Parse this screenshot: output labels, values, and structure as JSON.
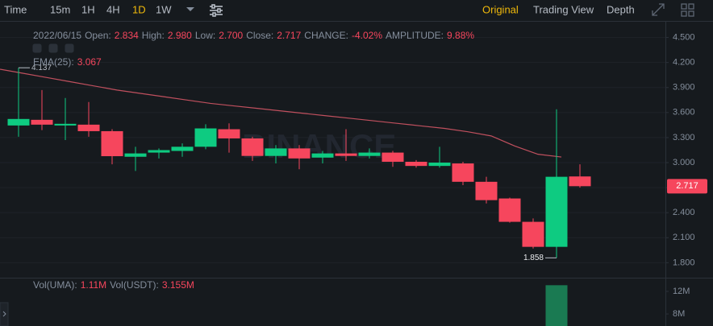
{
  "toolbar": {
    "intervals": [
      "Time",
      "15m",
      "1H",
      "4H",
      "1D",
      "1W"
    ],
    "active_interval": 4,
    "views": [
      "Original",
      "Trading View",
      "Depth"
    ],
    "active_view": 0
  },
  "chart_data": {
    "type": "candlestick",
    "watermark": "BINANCE",
    "info": {
      "date": "2022/06/15",
      "fields": [
        {
          "label": "Open:",
          "value": "2.834"
        },
        {
          "label": "High:",
          "value": "2.980"
        },
        {
          "label": "Low:",
          "value": "2.700"
        },
        {
          "label": "Close:",
          "value": "2.717"
        },
        {
          "label": "CHANGE:",
          "value": "-4.02%"
        },
        {
          "label": "AMPLITUDE:",
          "value": "9.88%"
        }
      ]
    },
    "up_color": "#0ecb81",
    "down_color": "#f6465d",
    "open": [
      3.445,
      3.513,
      3.445,
      3.455,
      3.377,
      3.07,
      3.12,
      3.14,
      3.19,
      3.4,
      3.29,
      3.08,
      3.17,
      3.06,
      3.11,
      3.08,
      3.12,
      3.01,
      2.96,
      2.99,
      2.77,
      2.57,
      2.29,
      1.99,
      2.834
    ],
    "high": [
      4.137,
      3.87,
      3.774,
      3.726,
      3.4,
      3.19,
      3.17,
      3.23,
      3.46,
      3.47,
      3.31,
      3.21,
      3.21,
      3.14,
      3.4,
      3.17,
      3.14,
      3.03,
      3.19,
      3.01,
      2.83,
      2.58,
      2.33,
      3.64,
      2.98
    ],
    "low": [
      3.31,
      3.39,
      3.27,
      3.31,
      2.98,
      2.9,
      3.05,
      3.07,
      3.16,
      3.12,
      3.02,
      2.99,
      2.92,
      2.99,
      3.02,
      3.05,
      2.95,
      2.94,
      2.94,
      2.73,
      2.51,
      2.28,
      1.97,
      1.858,
      2.7
    ],
    "close": [
      3.523,
      3.455,
      3.465,
      3.377,
      3.077,
      3.11,
      3.15,
      3.19,
      3.41,
      3.29,
      3.08,
      3.17,
      3.05,
      3.11,
      3.08,
      3.12,
      3.01,
      2.96,
      3.0,
      2.77,
      2.55,
      2.29,
      1.99,
      2.83,
      2.717
    ],
    "ema": {
      "label": "EMA(25):",
      "value_label": "3.067",
      "color": "#c0505e",
      "values": [
        4.12,
        4.07,
        4.02,
        3.97,
        3.92,
        3.87,
        3.83,
        3.79,
        3.75,
        3.71,
        3.68,
        3.65,
        3.62,
        3.59,
        3.56,
        3.53,
        3.5,
        3.47,
        3.44,
        3.41,
        3.37,
        3.32,
        3.2,
        3.1,
        3.067
      ]
    },
    "ylim": [
      1.62,
      4.66
    ],
    "yticks": [
      {
        "value": 4.5,
        "label": "4.500"
      },
      {
        "value": 4.2,
        "label": "4.200"
      },
      {
        "value": 3.9,
        "label": "3.900"
      },
      {
        "value": 3.6,
        "label": "3.600"
      },
      {
        "value": 3.3,
        "label": "3.300"
      },
      {
        "value": 3.0,
        "label": "3.000"
      },
      {
        "value": 2.7,
        "label": "2.700"
      },
      {
        "value": 2.4,
        "label": "2.400"
      },
      {
        "value": 2.1,
        "label": "2.100"
      },
      {
        "value": 1.8,
        "label": "1.800"
      }
    ],
    "grid": true,
    "volume": {
      "fields": [
        {
          "label": "Vol(UMA):",
          "value": "1.11M"
        },
        {
          "label": "Vol(USDT):",
          "value": "3.155M"
        }
      ],
      "color": "#1a7a52",
      "values": [
        null,
        null,
        null,
        null,
        null,
        null,
        null,
        null,
        null,
        null,
        null,
        null,
        null,
        null,
        null,
        null,
        null,
        null,
        null,
        null,
        null,
        null,
        null,
        13.1,
        null
      ],
      "ylim": [
        5.86,
        14.29
      ],
      "yticks": [
        {
          "value": 12,
          "label": "12M"
        },
        {
          "value": 8,
          "label": "8M"
        }
      ]
    }
  }
}
